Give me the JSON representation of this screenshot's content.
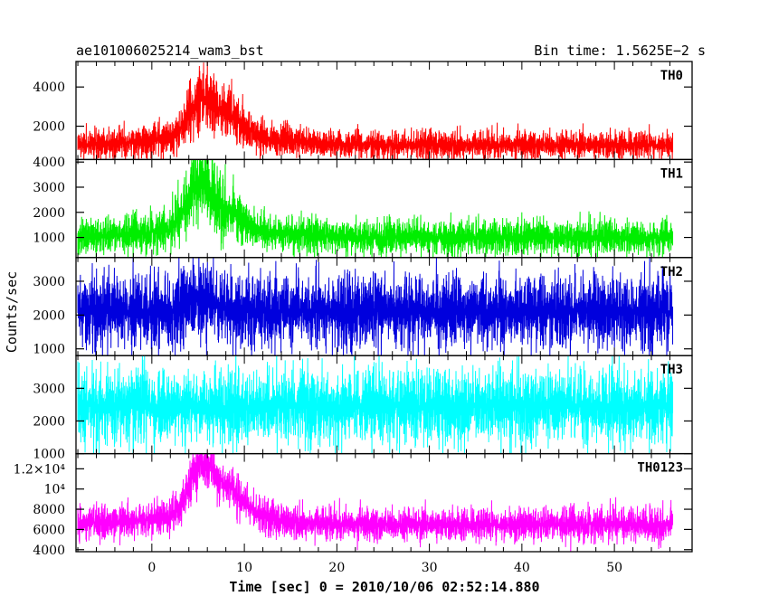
{
  "title_left": "ae101006025214_wam3_bst",
  "title_right": "Bin time: 1.5625E−2 s",
  "chart_data": {
    "type": "line",
    "xlabel": "Time [sec] 0 = 2010/10/06 02:52:14.880",
    "ylabel": "Counts/sec",
    "xlim": [
      -8.2,
      58.4
    ],
    "x_ticks": [
      0,
      10,
      20,
      30,
      40,
      50
    ],
    "panels": [
      {
        "name": "TH0",
        "color": "#ff0000",
        "ylim": [
          300,
          5300
        ],
        "y_ticks": [
          {
            "value": 2000,
            "label": "2000"
          },
          {
            "value": 4000,
            "label": "4000"
          }
        ],
        "base": 1050,
        "noise": 400,
        "duration": [
          -8.0,
          56.3
        ],
        "peaks": [
          {
            "t": 5.2,
            "amp": 1700,
            "w": 1.3
          },
          {
            "t": 8.2,
            "amp": 1100,
            "w": 1.8
          },
          {
            "t": 6.5,
            "amp": 400,
            "w": 6
          }
        ]
      },
      {
        "name": "TH1",
        "color": "#00ee00",
        "ylim": [
          200,
          4100
        ],
        "y_ticks": [
          {
            "value": 1000,
            "label": "1000"
          },
          {
            "value": 2000,
            "label": "2000"
          },
          {
            "value": 3000,
            "label": "3000"
          },
          {
            "value": 4000,
            "label": "4000"
          }
        ],
        "base": 1000,
        "noise": 380,
        "duration": [
          -8.0,
          56.3
        ],
        "peaks": [
          {
            "t": 5.1,
            "amp": 1700,
            "w": 1.3
          },
          {
            "t": 7.8,
            "amp": 700,
            "w": 1.7
          },
          {
            "t": 6.0,
            "amp": 350,
            "w": 6
          }
        ]
      },
      {
        "name": "TH2",
        "color": "#0000dd",
        "ylim": [
          800,
          3700
        ],
        "y_ticks": [
          {
            "value": 1000,
            "label": "1000"
          },
          {
            "value": 2000,
            "label": "2000"
          },
          {
            "value": 3000,
            "label": "3000"
          }
        ],
        "base": 2100,
        "noise": 600,
        "duration": [
          -8.0,
          56.3
        ],
        "peaks": [
          {
            "t": 5.2,
            "amp": 400,
            "w": 1.5
          }
        ]
      },
      {
        "name": "TH3",
        "color": "#00ffff",
        "ylim": [
          1000,
          4000
        ],
        "y_ticks": [
          {
            "value": 1000,
            "label": "1000"
          },
          {
            "value": 2000,
            "label": "2000"
          },
          {
            "value": 3000,
            "label": "3000"
          }
        ],
        "base": 2450,
        "noise": 620,
        "duration": [
          -8.0,
          56.3
        ],
        "peaks": []
      },
      {
        "name": "TH0123",
        "color": "#ff00ff",
        "ylim": [
          3800,
          13500
        ],
        "y_ticks": [
          {
            "value": 4000,
            "label": "4000"
          },
          {
            "value": 6000,
            "label": "6000"
          },
          {
            "value": 8000,
            "label": "8000"
          },
          {
            "value": 10000,
            "label": "10⁴"
          },
          {
            "value": 12000,
            "label": "1.2×10⁴"
          }
        ],
        "base": 6500,
        "noise": 900,
        "duration": [
          -8.0,
          56.3
        ],
        "peaks": [
          {
            "t": 5.3,
            "amp": 4500,
            "w": 1.3
          },
          {
            "t": 8.2,
            "amp": 2600,
            "w": 1.8
          },
          {
            "t": 6.0,
            "amp": 900,
            "w": 6
          }
        ]
      }
    ]
  }
}
